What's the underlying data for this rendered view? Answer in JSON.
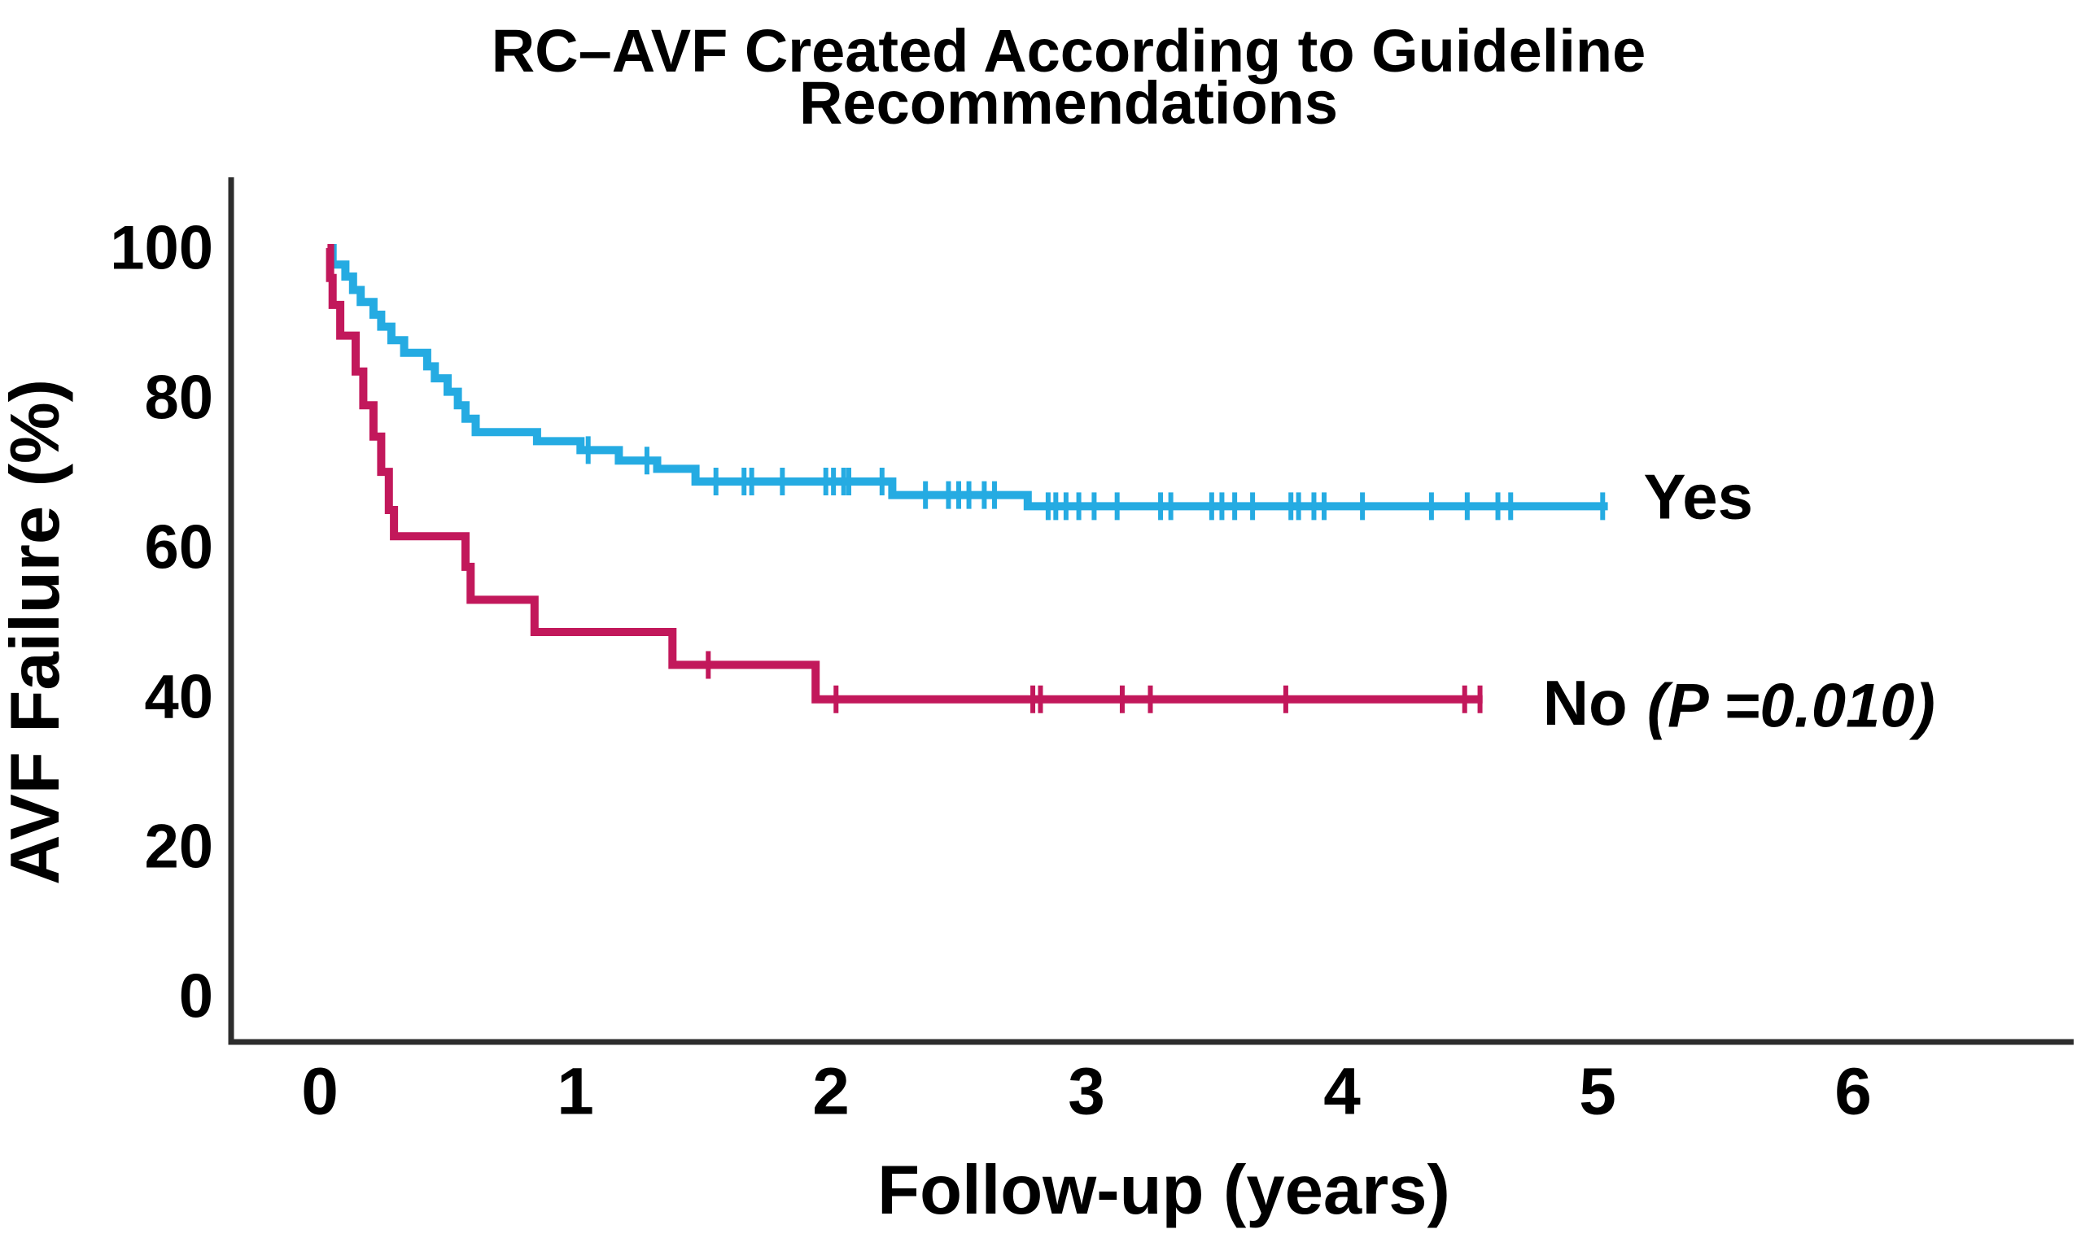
{
  "colors": {
    "background": "#ffffff",
    "axis": "#2d2d2d",
    "text": "#000000",
    "yes_curve": "#25abe2",
    "no_curve": "#c2185b"
  },
  "chart_data": {
    "type": "line",
    "subtype": "kaplan-meier-step-curves",
    "title": "RC–AVF Created According to Guideline Recommendations",
    "title_line1": "RC–AVF Created According to Guideline",
    "title_line2": "Recommendations",
    "xlabel": "Follow-up (years)",
    "ylabel": "AVF Failure (%)",
    "xlim": [
      0,
      6
    ],
    "ylim": [
      0,
      100
    ],
    "x_ticks": [
      0,
      1,
      2,
      3,
      4,
      5,
      6
    ],
    "y_ticks": [
      100,
      80,
      60,
      40,
      20,
      0
    ],
    "grid": false,
    "legend_position": "end-of-curve",
    "p_value_label": "(P =0.010)",
    "series": [
      {
        "name": "Yes",
        "color": "#25abe2",
        "end_x": 5.04,
        "label_offset": [
          44,
          -12
        ],
        "steps": [
          [
            0.04,
            100
          ],
          [
            0.05,
            97.8
          ],
          [
            0.1,
            96.2
          ],
          [
            0.13,
            94.4
          ],
          [
            0.16,
            92.8
          ],
          [
            0.21,
            91.1
          ],
          [
            0.24,
            89.5
          ],
          [
            0.28,
            87.7
          ],
          [
            0.33,
            86.0
          ],
          [
            0.42,
            84.2
          ],
          [
            0.45,
            82.6
          ],
          [
            0.5,
            80.8
          ],
          [
            0.54,
            79.0
          ],
          [
            0.57,
            77.2
          ],
          [
            0.61,
            75.4
          ],
          [
            0.85,
            74.2
          ],
          [
            1.02,
            73.0
          ],
          [
            1.17,
            71.6
          ],
          [
            1.32,
            70.5
          ],
          [
            1.47,
            68.8
          ],
          [
            2.24,
            67.0
          ],
          [
            2.77,
            65.5
          ]
        ],
        "censors": [
          [
            1.05,
            73.0
          ],
          [
            1.28,
            71.6
          ],
          [
            1.55,
            68.8
          ],
          [
            1.66,
            68.8
          ],
          [
            1.69,
            68.8
          ],
          [
            1.81,
            68.8
          ],
          [
            1.98,
            68.8
          ],
          [
            2.01,
            68.8
          ],
          [
            2.05,
            68.8
          ],
          [
            2.07,
            68.8
          ],
          [
            2.2,
            68.8
          ],
          [
            2.37,
            67.0
          ],
          [
            2.46,
            67.0
          ],
          [
            2.5,
            67.0
          ],
          [
            2.54,
            67.0
          ],
          [
            2.6,
            67.0
          ],
          [
            2.64,
            67.0
          ],
          [
            2.85,
            65.5
          ],
          [
            2.88,
            65.5
          ],
          [
            2.92,
            65.5
          ],
          [
            2.97,
            65.5
          ],
          [
            3.03,
            65.5
          ],
          [
            3.12,
            65.5
          ],
          [
            3.29,
            65.5
          ],
          [
            3.33,
            65.5
          ],
          [
            3.49,
            65.5
          ],
          [
            3.53,
            65.5
          ],
          [
            3.58,
            65.5
          ],
          [
            3.65,
            65.5
          ],
          [
            3.8,
            65.5
          ],
          [
            3.83,
            65.5
          ],
          [
            3.89,
            65.5
          ],
          [
            3.93,
            65.5
          ],
          [
            4.08,
            65.5
          ],
          [
            4.35,
            65.5
          ],
          [
            4.49,
            65.5
          ],
          [
            4.61,
            65.5
          ],
          [
            4.66,
            65.5
          ],
          [
            5.02,
            65.5
          ]
        ]
      },
      {
        "name": "No",
        "color": "#c2185b",
        "end_x": 4.55,
        "label_offset": [
          74,
          4
        ],
        "p_label": "(P =0.010)",
        "p_label_offset": [
          202,
          8
        ],
        "steps": [
          [
            0.03,
            100
          ],
          [
            0.04,
            96.0
          ],
          [
            0.05,
            92.4
          ],
          [
            0.08,
            88.3
          ],
          [
            0.14,
            83.5
          ],
          [
            0.17,
            79.0
          ],
          [
            0.21,
            74.8
          ],
          [
            0.24,
            70.1
          ],
          [
            0.27,
            65.0
          ],
          [
            0.29,
            61.5
          ],
          [
            0.57,
            57.4
          ],
          [
            0.59,
            53.0
          ],
          [
            0.84,
            48.7
          ],
          [
            1.38,
            44.3
          ],
          [
            1.94,
            39.7
          ]
        ],
        "censors": [
          [
            1.52,
            44.3
          ],
          [
            2.02,
            39.7
          ],
          [
            2.79,
            39.7
          ],
          [
            2.82,
            39.7
          ],
          [
            3.14,
            39.7
          ],
          [
            3.25,
            39.7
          ],
          [
            3.78,
            39.7
          ],
          [
            4.48,
            39.7
          ],
          [
            4.54,
            39.7
          ]
        ]
      }
    ]
  }
}
